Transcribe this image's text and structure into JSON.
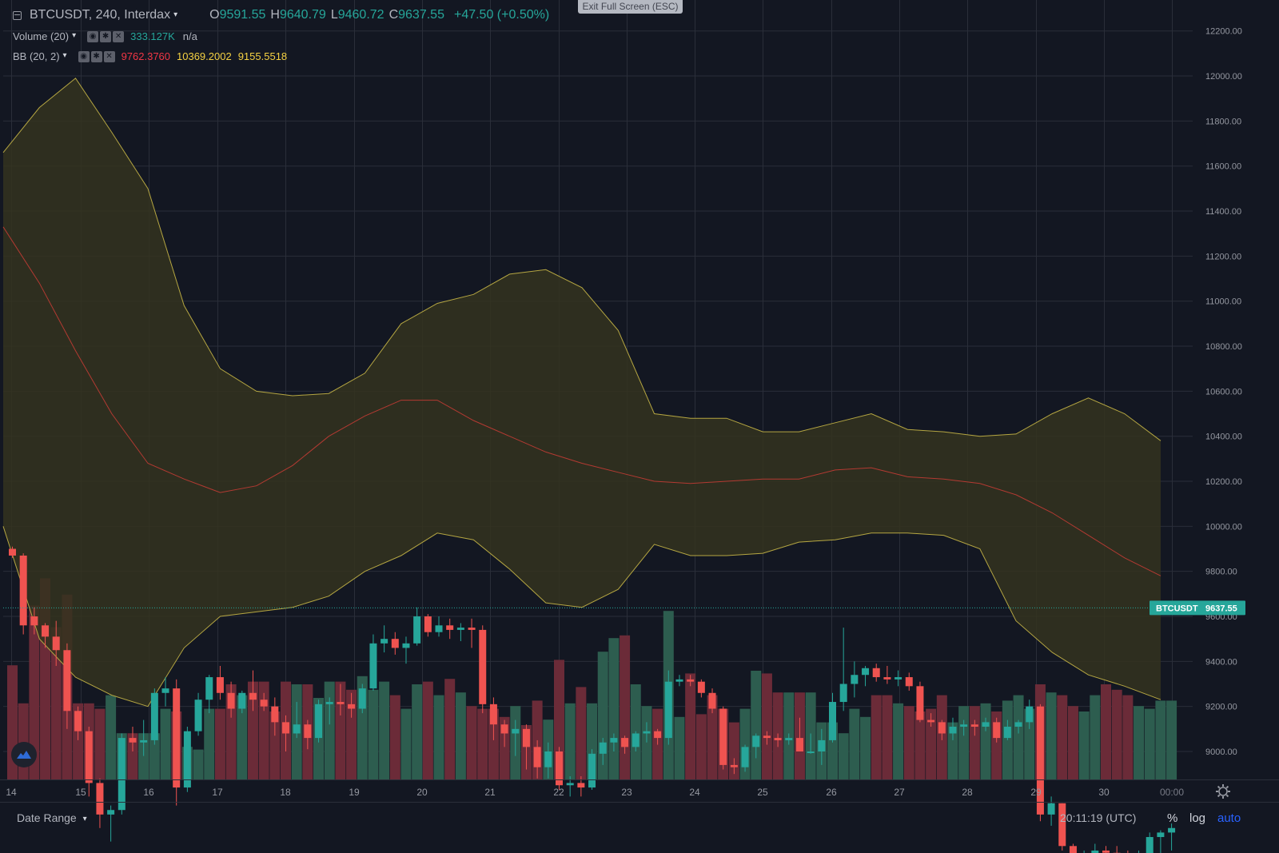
{
  "banner": {
    "exit_fullscreen": "Exit Full Screen (ESC)"
  },
  "symbol": {
    "name": "BTCUSDT, 240, Interdax",
    "open_label": "O",
    "open": "9591.55",
    "high_label": "H",
    "high": "9640.79",
    "low_label": "L",
    "low": "9460.72",
    "close_label": "C",
    "close": "9637.55",
    "change": "+47.50 (+0.50%)"
  },
  "indicators": {
    "volume": {
      "label": "Volume (20)",
      "value": "333.127K",
      "na": "n/a"
    },
    "bb": {
      "label": "BB (20, 2)",
      "basis": "9762.3760",
      "upper": "10369.2002",
      "lower": "9155.5518"
    }
  },
  "price_tag": {
    "symbol": "BTCUSDT",
    "price": "9637.55"
  },
  "bottom": {
    "date_range": "Date Range",
    "clock": "20:11:19 (UTC)",
    "percent": "%",
    "log": "log",
    "auto": "auto"
  },
  "colors": {
    "background": "#131722",
    "grid": "#2a2e39",
    "up": "#26a69a",
    "down": "#ef5350",
    "bb_line": "#b5a642",
    "bb_fill": "#34331f",
    "basis": "#b33a32",
    "vol_up": "#2d5d4f",
    "vol_down": "#6b2b38"
  },
  "chart_data": {
    "type": "candlestick",
    "title": "BTCUSDT, 240, Interdax",
    "y_axis": {
      "ticks": [
        9000,
        9200,
        9400,
        9600,
        9800,
        10000,
        10200,
        10400,
        10600,
        10800,
        11000,
        11200,
        11400,
        11600,
        11800,
        12000,
        12200
      ]
    },
    "x_axis": {
      "labels": [
        "14",
        "15",
        "16",
        "17",
        "18",
        "19",
        "20",
        "21",
        "22",
        "23",
        "24",
        "25",
        "26",
        "27",
        "28",
        "29",
        "30",
        "00:00"
      ]
    },
    "ohlc": [
      [
        9900,
        9910,
        9860,
        9870
      ],
      [
        9870,
        9880,
        9520,
        9560
      ],
      [
        9600,
        9640,
        9520,
        9560
      ],
      [
        9560,
        9570,
        9460,
        9510
      ],
      [
        9510,
        9580,
        9380,
        9450
      ],
      [
        9450,
        9480,
        9100,
        9180
      ],
      [
        9180,
        9200,
        9050,
        9090
      ],
      [
        9090,
        9110,
        8800,
        8860
      ],
      [
        8860,
        8880,
        8660,
        8720
      ],
      [
        8720,
        8760,
        8600,
        8740
      ],
      [
        8740,
        9080,
        8720,
        9060
      ],
      [
        9060,
        9110,
        9000,
        9040
      ],
      [
        9040,
        9140,
        8980,
        9050
      ],
      [
        9050,
        9280,
        9030,
        9260
      ],
      [
        9260,
        9330,
        9200,
        9280
      ],
      [
        9280,
        9320,
        8760,
        8840
      ],
      [
        8840,
        9110,
        8820,
        9090
      ],
      [
        9090,
        9260,
        9070,
        9230
      ],
      [
        9230,
        9340,
        9170,
        9330
      ],
      [
        9330,
        9380,
        9230,
        9260
      ],
      [
        9260,
        9310,
        9150,
        9190
      ],
      [
        9190,
        9270,
        9170,
        9260
      ],
      [
        9260,
        9360,
        9180,
        9230
      ],
      [
        9230,
        9260,
        9180,
        9200
      ],
      [
        9200,
        9240,
        9070,
        9130
      ],
      [
        9130,
        9160,
        9000,
        9080
      ],
      [
        9080,
        9220,
        9060,
        9120
      ],
      [
        9120,
        9140,
        9010,
        9060
      ],
      [
        9060,
        9230,
        9040,
        9210
      ],
      [
        9210,
        9240,
        9120,
        9220
      ],
      [
        9220,
        9300,
        9160,
        9210
      ],
      [
        9210,
        9260,
        9150,
        9190
      ],
      [
        9190,
        9300,
        9170,
        9280
      ],
      [
        9280,
        9520,
        9270,
        9480
      ],
      [
        9480,
        9560,
        9440,
        9500
      ],
      [
        9500,
        9530,
        9430,
        9460
      ],
      [
        9460,
        9510,
        9390,
        9480
      ],
      [
        9480,
        9640,
        9470,
        9600
      ],
      [
        9600,
        9610,
        9510,
        9530
      ],
      [
        9530,
        9600,
        9510,
        9560
      ],
      [
        9560,
        9590,
        9500,
        9540
      ],
      [
        9540,
        9570,
        9490,
        9550
      ],
      [
        9550,
        9590,
        9460,
        9540
      ],
      [
        9540,
        9560,
        9170,
        9210
      ],
      [
        9210,
        9240,
        9050,
        9120
      ],
      [
        9120,
        9140,
        9020,
        9080
      ],
      [
        9080,
        9140,
        8980,
        9100
      ],
      [
        9100,
        9120,
        8920,
        9020
      ],
      [
        9020,
        9050,
        8880,
        8930
      ],
      [
        8930,
        9040,
        8880,
        9000
      ],
      [
        9000,
        9020,
        8830,
        8850
      ],
      [
        8850,
        8890,
        8800,
        8860
      ],
      [
        8860,
        8890,
        8800,
        8840
      ],
      [
        8840,
        9010,
        8830,
        8990
      ],
      [
        8990,
        9060,
        8940,
        9040
      ],
      [
        9040,
        9080,
        9000,
        9060
      ],
      [
        9060,
        9070,
        8990,
        9020
      ],
      [
        9020,
        9090,
        9000,
        9080
      ],
      [
        9080,
        9130,
        9040,
        9090
      ],
      [
        9090,
        9100,
        9030,
        9060
      ],
      [
        9060,
        9360,
        9030,
        9310
      ],
      [
        9310,
        9340,
        9290,
        9320
      ],
      [
        9320,
        9340,
        9290,
        9310
      ],
      [
        9310,
        9320,
        9240,
        9260
      ],
      [
        9260,
        9280,
        9170,
        9190
      ],
      [
        9190,
        9200,
        8920,
        8940
      ],
      [
        8940,
        8970,
        8900,
        8930
      ],
      [
        8930,
        9030,
        8910,
        9020
      ],
      [
        9020,
        9080,
        8970,
        9070
      ],
      [
        9070,
        9090,
        9030,
        9060
      ],
      [
        9060,
        9080,
        9020,
        9050
      ],
      [
        9050,
        9080,
        9030,
        9060
      ],
      [
        9060,
        9150,
        9000,
        9000
      ],
      [
        9000,
        9080,
        8990,
        9000
      ],
      [
        9000,
        9100,
        8940,
        9050
      ],
      [
        9050,
        9260,
        9040,
        9220
      ],
      [
        9220,
        9550,
        9180,
        9300
      ],
      [
        9300,
        9400,
        9240,
        9340
      ],
      [
        9340,
        9380,
        9290,
        9370
      ],
      [
        9370,
        9390,
        9310,
        9330
      ],
      [
        9330,
        9380,
        9300,
        9320
      ],
      [
        9320,
        9360,
        9290,
        9330
      ],
      [
        9330,
        9350,
        9270,
        9290
      ],
      [
        9290,
        9310,
        9130,
        9140
      ],
      [
        9140,
        9170,
        9110,
        9130
      ],
      [
        9130,
        9140,
        9050,
        9080
      ],
      [
        9080,
        9150,
        9050,
        9110
      ],
      [
        9110,
        9140,
        9070,
        9120
      ],
      [
        9120,
        9140,
        9070,
        9110
      ],
      [
        9110,
        9150,
        9090,
        9130
      ],
      [
        9130,
        9150,
        9040,
        9060
      ],
      [
        9060,
        9140,
        9050,
        9110
      ],
      [
        9110,
        9140,
        9080,
        9130
      ],
      [
        9130,
        9230,
        9100,
        9200
      ],
      [
        9200,
        9210,
        8690,
        8720
      ],
      [
        8720,
        8800,
        8670,
        8770
      ],
      [
        8770,
        8770,
        8560,
        8580
      ],
      [
        8580,
        8590,
        8450,
        8480
      ],
      [
        8480,
        8560,
        8460,
        8540
      ],
      [
        8540,
        8590,
        8500,
        8560
      ],
      [
        8560,
        8580,
        8510,
        8550
      ],
      [
        8550,
        8580,
        8510,
        8540
      ],
      [
        8540,
        8560,
        8470,
        8510
      ],
      [
        8510,
        8560,
        8500,
        8530
      ],
      [
        8530,
        8640,
        8520,
        8620
      ],
      [
        8620,
        8650,
        8480,
        8640
      ],
      [
        8640,
        8680,
        8560,
        8660
      ]
    ],
    "volume": [
      42,
      28,
      64,
      74,
      56,
      68,
      28,
      28,
      26,
      31,
      17,
      17,
      17,
      17,
      26,
      25,
      12,
      11,
      26,
      26,
      35,
      31,
      36,
      36,
      25,
      36,
      35,
      35,
      30,
      36,
      36,
      33,
      38,
      33,
      36,
      31,
      26,
      35,
      36,
      31,
      37,
      32,
      27,
      26,
      26,
      23,
      27,
      20,
      29,
      22,
      44,
      28,
      34,
      28,
      47,
      52,
      53,
      35,
      27,
      26,
      62,
      23,
      39,
      24,
      31,
      26,
      21,
      26,
      40,
      39,
      32,
      32,
      32,
      32,
      21,
      21,
      17,
      26,
      23,
      31,
      31,
      28,
      27,
      25,
      26,
      31,
      21,
      27,
      27,
      28,
      25,
      29,
      31,
      26,
      35,
      32,
      31,
      27,
      25,
      31,
      35,
      33,
      31,
      27,
      26,
      29,
      29
    ],
    "bb_upper": [
      11660,
      11860,
      11990,
      11750,
      11500,
      10980,
      10700,
      10600,
      10580,
      10590,
      10680,
      10900,
      10990,
      11030,
      11120,
      11140,
      11060,
      10870,
      10500,
      10480,
      10480,
      10420,
      10420,
      10460,
      10500,
      10430,
      10420,
      10400,
      10410,
      10500,
      10570,
      10500,
      10380
    ],
    "bb_lower": [
      10000,
      9500,
      9330,
      9250,
      9200,
      9460,
      9600,
      9620,
      9640,
      9690,
      9800,
      9870,
      9970,
      9940,
      9810,
      9660,
      9640,
      9720,
      9920,
      9870,
      9870,
      9880,
      9930,
      9940,
      9970,
      9970,
      9960,
      9900,
      9580,
      9440,
      9340,
      9290,
      9230
    ],
    "bb_basis": [
      11330,
      11080,
      10780,
      10500,
      10280,
      10210,
      10150,
      10180,
      10270,
      10400,
      10490,
      10560,
      10560,
      10470,
      10400,
      10330,
      10280,
      10240,
      10200,
      10190,
      10200,
      10210,
      10210,
      10250,
      10260,
      10220,
      10210,
      10190,
      10140,
      10060,
      9960,
      9860,
      9780
    ]
  }
}
